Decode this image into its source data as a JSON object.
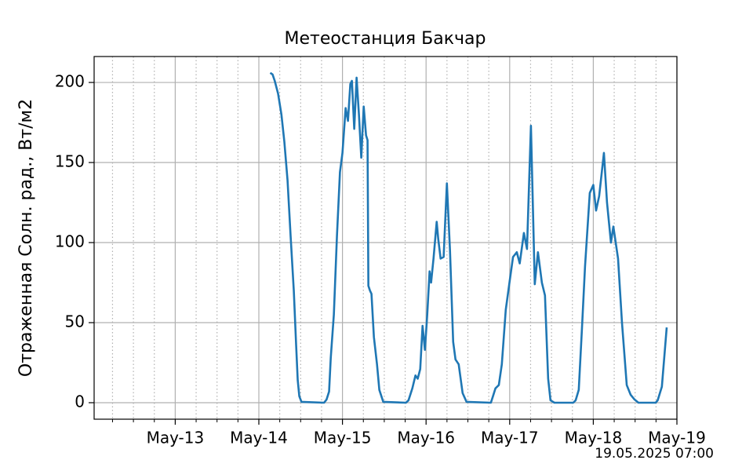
{
  "chart_data": {
    "type": "line",
    "title": "Метеостанция Бакчар",
    "ylabel": "Отраженная Солн. рад., Вт/м2",
    "annotation": "19.05.2025 07:00",
    "color": "#1f77b4",
    "x": [
      14.136,
      14.164,
      14.19,
      14.23,
      14.27,
      14.305,
      14.343,
      14.38,
      14.418,
      14.446,
      14.465,
      14.484,
      14.51,
      14.78,
      14.81,
      14.84,
      14.86,
      14.897,
      14.934,
      14.97,
      15.0,
      15.038,
      15.066,
      15.094,
      15.113,
      15.141,
      15.169,
      15.197,
      15.225,
      15.254,
      15.282,
      15.3,
      15.31,
      15.329,
      15.347,
      15.376,
      15.413,
      15.441,
      15.488,
      15.76,
      15.79,
      15.836,
      15.873,
      15.9,
      15.93,
      15.958,
      15.986,
      16.014,
      16.042,
      16.06,
      16.089,
      16.127,
      16.146,
      16.174,
      16.21,
      16.249,
      16.286,
      16.324,
      16.352,
      16.39,
      16.437,
      16.484,
      16.775,
      16.8,
      16.83,
      16.87,
      16.906,
      16.953,
      17.0,
      17.04,
      17.085,
      17.12,
      17.17,
      17.207,
      17.254,
      17.3,
      17.338,
      17.385,
      17.422,
      17.46,
      17.488,
      17.535,
      17.76,
      17.789,
      17.826,
      17.864,
      17.901,
      17.958,
      18.0,
      18.033,
      18.07,
      18.127,
      18.164,
      18.211,
      18.24,
      18.296,
      18.343,
      18.4,
      18.446,
      18.493,
      18.54,
      18.746,
      18.77,
      18.82,
      18.878
    ],
    "values": [
      206,
      205,
      201,
      193,
      180,
      163,
      139,
      104,
      70,
      36,
      14,
      4,
      0.5,
      0,
      2,
      7,
      28,
      55,
      104,
      144,
      156,
      184,
      176,
      199,
      201,
      171,
      203,
      180,
      153,
      185,
      167,
      164,
      73,
      70,
      68,
      41,
      24,
      8,
      0.5,
      0,
      1.5,
      9,
      17,
      15,
      21,
      48,
      33,
      55,
      82,
      75,
      90,
      113,
      102,
      90,
      91,
      137,
      95,
      38,
      27,
      24,
      6,
      0.5,
      0,
      4,
      9,
      11,
      24,
      58,
      76,
      91,
      94,
      87,
      106,
      96,
      173,
      74,
      94,
      75,
      67,
      15,
      1.5,
      0,
      0,
      1.5,
      8,
      46,
      85,
      131,
      136,
      120,
      129,
      156,
      125,
      100,
      110,
      90,
      50,
      11,
      5,
      2,
      0,
      0,
      1.5,
      10,
      47
    ],
    "xlim": [
      12.03,
      19.0
    ],
    "ylim": [
      -10.3,
      216.2
    ],
    "xticks": [
      {
        "value": 13,
        "label": "May-13"
      },
      {
        "value": 14,
        "label": "May-14"
      },
      {
        "value": 15,
        "label": "May-15"
      },
      {
        "value": 16,
        "label": "May-16"
      },
      {
        "value": 17,
        "label": "May-17"
      },
      {
        "value": 18,
        "label": "May-18"
      },
      {
        "value": 19,
        "label": "May-19"
      }
    ],
    "xminorticks": [
      12.25,
      12.5,
      12.75,
      13.25,
      13.5,
      13.75,
      14.25,
      14.5,
      14.75,
      15.25,
      15.5,
      15.75,
      16.25,
      16.5,
      16.75,
      17.25,
      17.5,
      17.75,
      18.25,
      18.5,
      18.75
    ],
    "yticks": [
      0,
      50,
      100,
      150,
      200
    ],
    "grid": true
  }
}
